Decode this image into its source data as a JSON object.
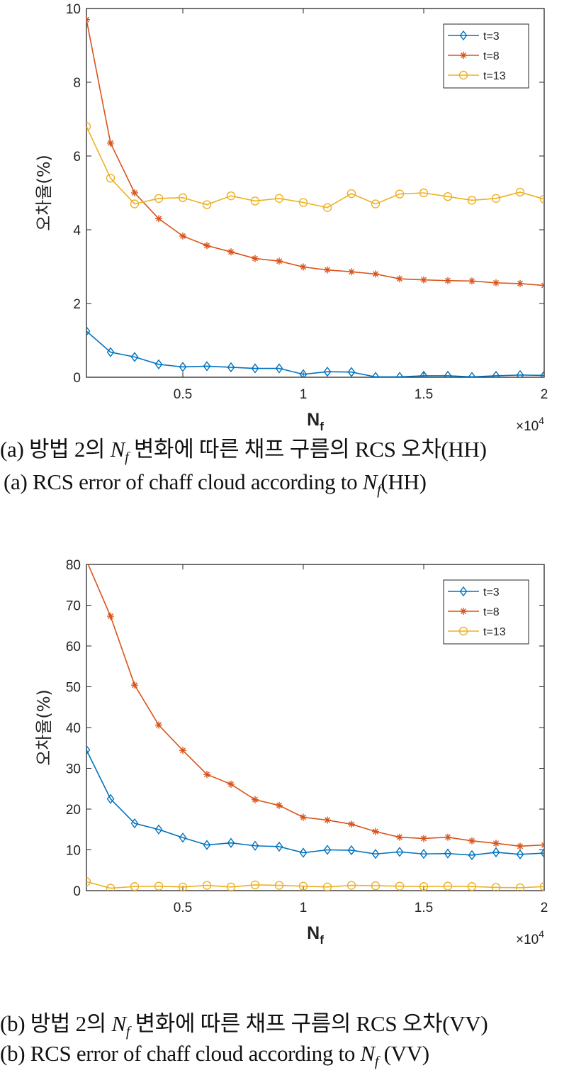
{
  "captions": {
    "a_ko": "(a) 방법 2의 N_f 변화에 따른 채프 구름의 RCS 오차(HH)",
    "a_en": "(a) RCS error of chaff cloud according to N_f(HH)",
    "b_ko": "(b) 방법 2의 N_f 변화에 따른 채프 구름의 RCS 오차(VV)",
    "b_en": "(b) RCS error of chaff cloud according to N_f (VV)"
  },
  "chart_data": [
    {
      "type": "line",
      "title": "",
      "xlabel": "N_f",
      "ylabel": "오차율(%)",
      "x_exponent_label": "×10^4",
      "xlim": [
        0.1,
        2
      ],
      "ylim": [
        0,
        10
      ],
      "xticks": [
        "0.5",
        "1",
        "1.5",
        "2"
      ],
      "yticks": [
        "0",
        "2",
        "4",
        "6",
        "8",
        "10"
      ],
      "legend_position": "top-right",
      "x": [
        0.1,
        0.2,
        0.3,
        0.4,
        0.5,
        0.6,
        0.7,
        0.8,
        0.9,
        1.0,
        1.1,
        1.2,
        1.3,
        1.4,
        1.5,
        1.6,
        1.7,
        1.8,
        1.9,
        2.0
      ],
      "series": [
        {
          "name": "t=3",
          "color": "#0072BD",
          "marker": "diamond",
          "values": [
            1.25,
            0.68,
            0.55,
            0.35,
            0.28,
            0.3,
            0.27,
            0.24,
            0.24,
            0.08,
            0.15,
            0.14,
            0.01,
            0.01,
            0.04,
            0.04,
            0.01,
            0.04,
            0.06,
            0.05
          ]
        },
        {
          "name": "t=8",
          "color": "#D95319",
          "marker": "asterisk",
          "values": [
            9.7,
            6.35,
            5.0,
            4.3,
            3.83,
            3.57,
            3.4,
            3.22,
            3.15,
            2.99,
            2.91,
            2.86,
            2.8,
            2.67,
            2.64,
            2.62,
            2.61,
            2.56,
            2.54,
            2.49
          ]
        },
        {
          "name": "t=13",
          "color": "#EDB120",
          "marker": "circle",
          "values": [
            6.8,
            5.4,
            4.7,
            4.85,
            4.87,
            4.68,
            4.92,
            4.78,
            4.85,
            4.74,
            4.6,
            4.98,
            4.7,
            4.97,
            5.0,
            4.9,
            4.8,
            4.85,
            5.02,
            4.83
          ]
        }
      ]
    },
    {
      "type": "line",
      "title": "",
      "xlabel": "N_f",
      "ylabel": "오차율(%)",
      "x_exponent_label": "×10^4",
      "xlim": [
        0.1,
        2
      ],
      "ylim": [
        0,
        80
      ],
      "xticks": [
        "0.5",
        "1",
        "1.5",
        "2"
      ],
      "yticks": [
        "0",
        "10",
        "20",
        "30",
        "40",
        "50",
        "60",
        "70",
        "80"
      ],
      "legend_position": "top-right",
      "x": [
        0.1,
        0.2,
        0.3,
        0.4,
        0.5,
        0.6,
        0.7,
        0.8,
        0.9,
        1.0,
        1.1,
        1.2,
        1.3,
        1.4,
        1.5,
        1.6,
        1.7,
        1.8,
        1.9,
        2.0
      ],
      "series": [
        {
          "name": "t=3",
          "color": "#0072BD",
          "marker": "diamond",
          "values": [
            34.5,
            22.5,
            16.5,
            15.0,
            13.0,
            11.2,
            11.7,
            11.0,
            10.8,
            9.3,
            10.0,
            9.9,
            9.0,
            9.5,
            9.0,
            9.1,
            8.7,
            9.4,
            8.9,
            9.2
          ]
        },
        {
          "name": "t=8",
          "color": "#D95319",
          "marker": "asterisk",
          "values": [
            81.0,
            67.3,
            50.4,
            40.6,
            34.4,
            28.5,
            26.1,
            22.3,
            20.9,
            18.0,
            17.3,
            16.3,
            14.5,
            13.1,
            12.8,
            13.1,
            12.2,
            11.6,
            10.9,
            11.2
          ]
        },
        {
          "name": "t=13",
          "color": "#EDB120",
          "marker": "circle",
          "values": [
            2.2,
            0.6,
            1.0,
            1.1,
            0.9,
            1.3,
            0.9,
            1.4,
            1.3,
            1.1,
            0.9,
            1.3,
            1.2,
            1.1,
            1.0,
            1.1,
            1.0,
            0.8,
            0.7,
            1.0
          ]
        }
      ]
    }
  ]
}
